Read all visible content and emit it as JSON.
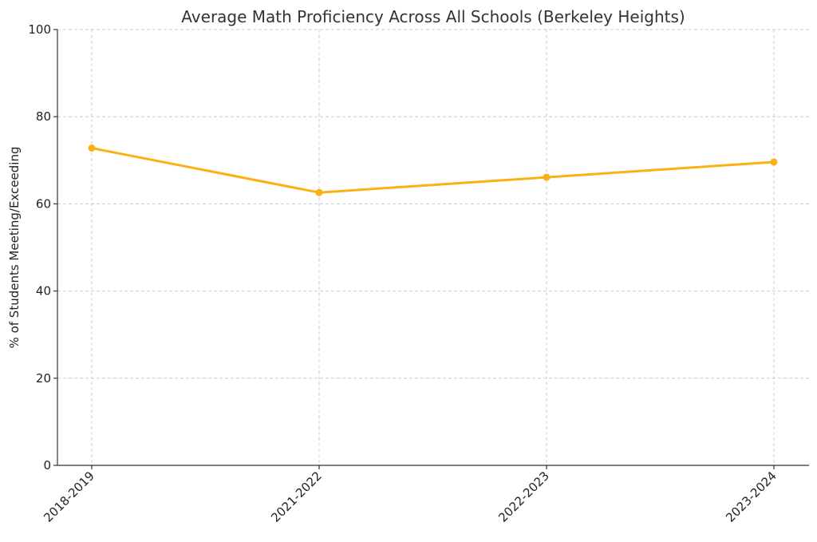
{
  "chart_data": {
    "type": "line",
    "title": "Average Math Proficiency Across All Schools (Berkeley Heights)",
    "xlabel": "",
    "ylabel": "% of Students Meeting/Exceeding",
    "categories": [
      "2018-2019",
      "2021-2022",
      "2022-2023",
      "2023-2024"
    ],
    "series": [
      {
        "values": [
          72.8,
          62.6,
          66.1,
          69.6
        ],
        "color": "#FBB116"
      }
    ],
    "ylim": [
      0,
      100
    ],
    "yticks": [
      0,
      20,
      40,
      60,
      80,
      100
    ],
    "grid": true,
    "legend": "none"
  }
}
